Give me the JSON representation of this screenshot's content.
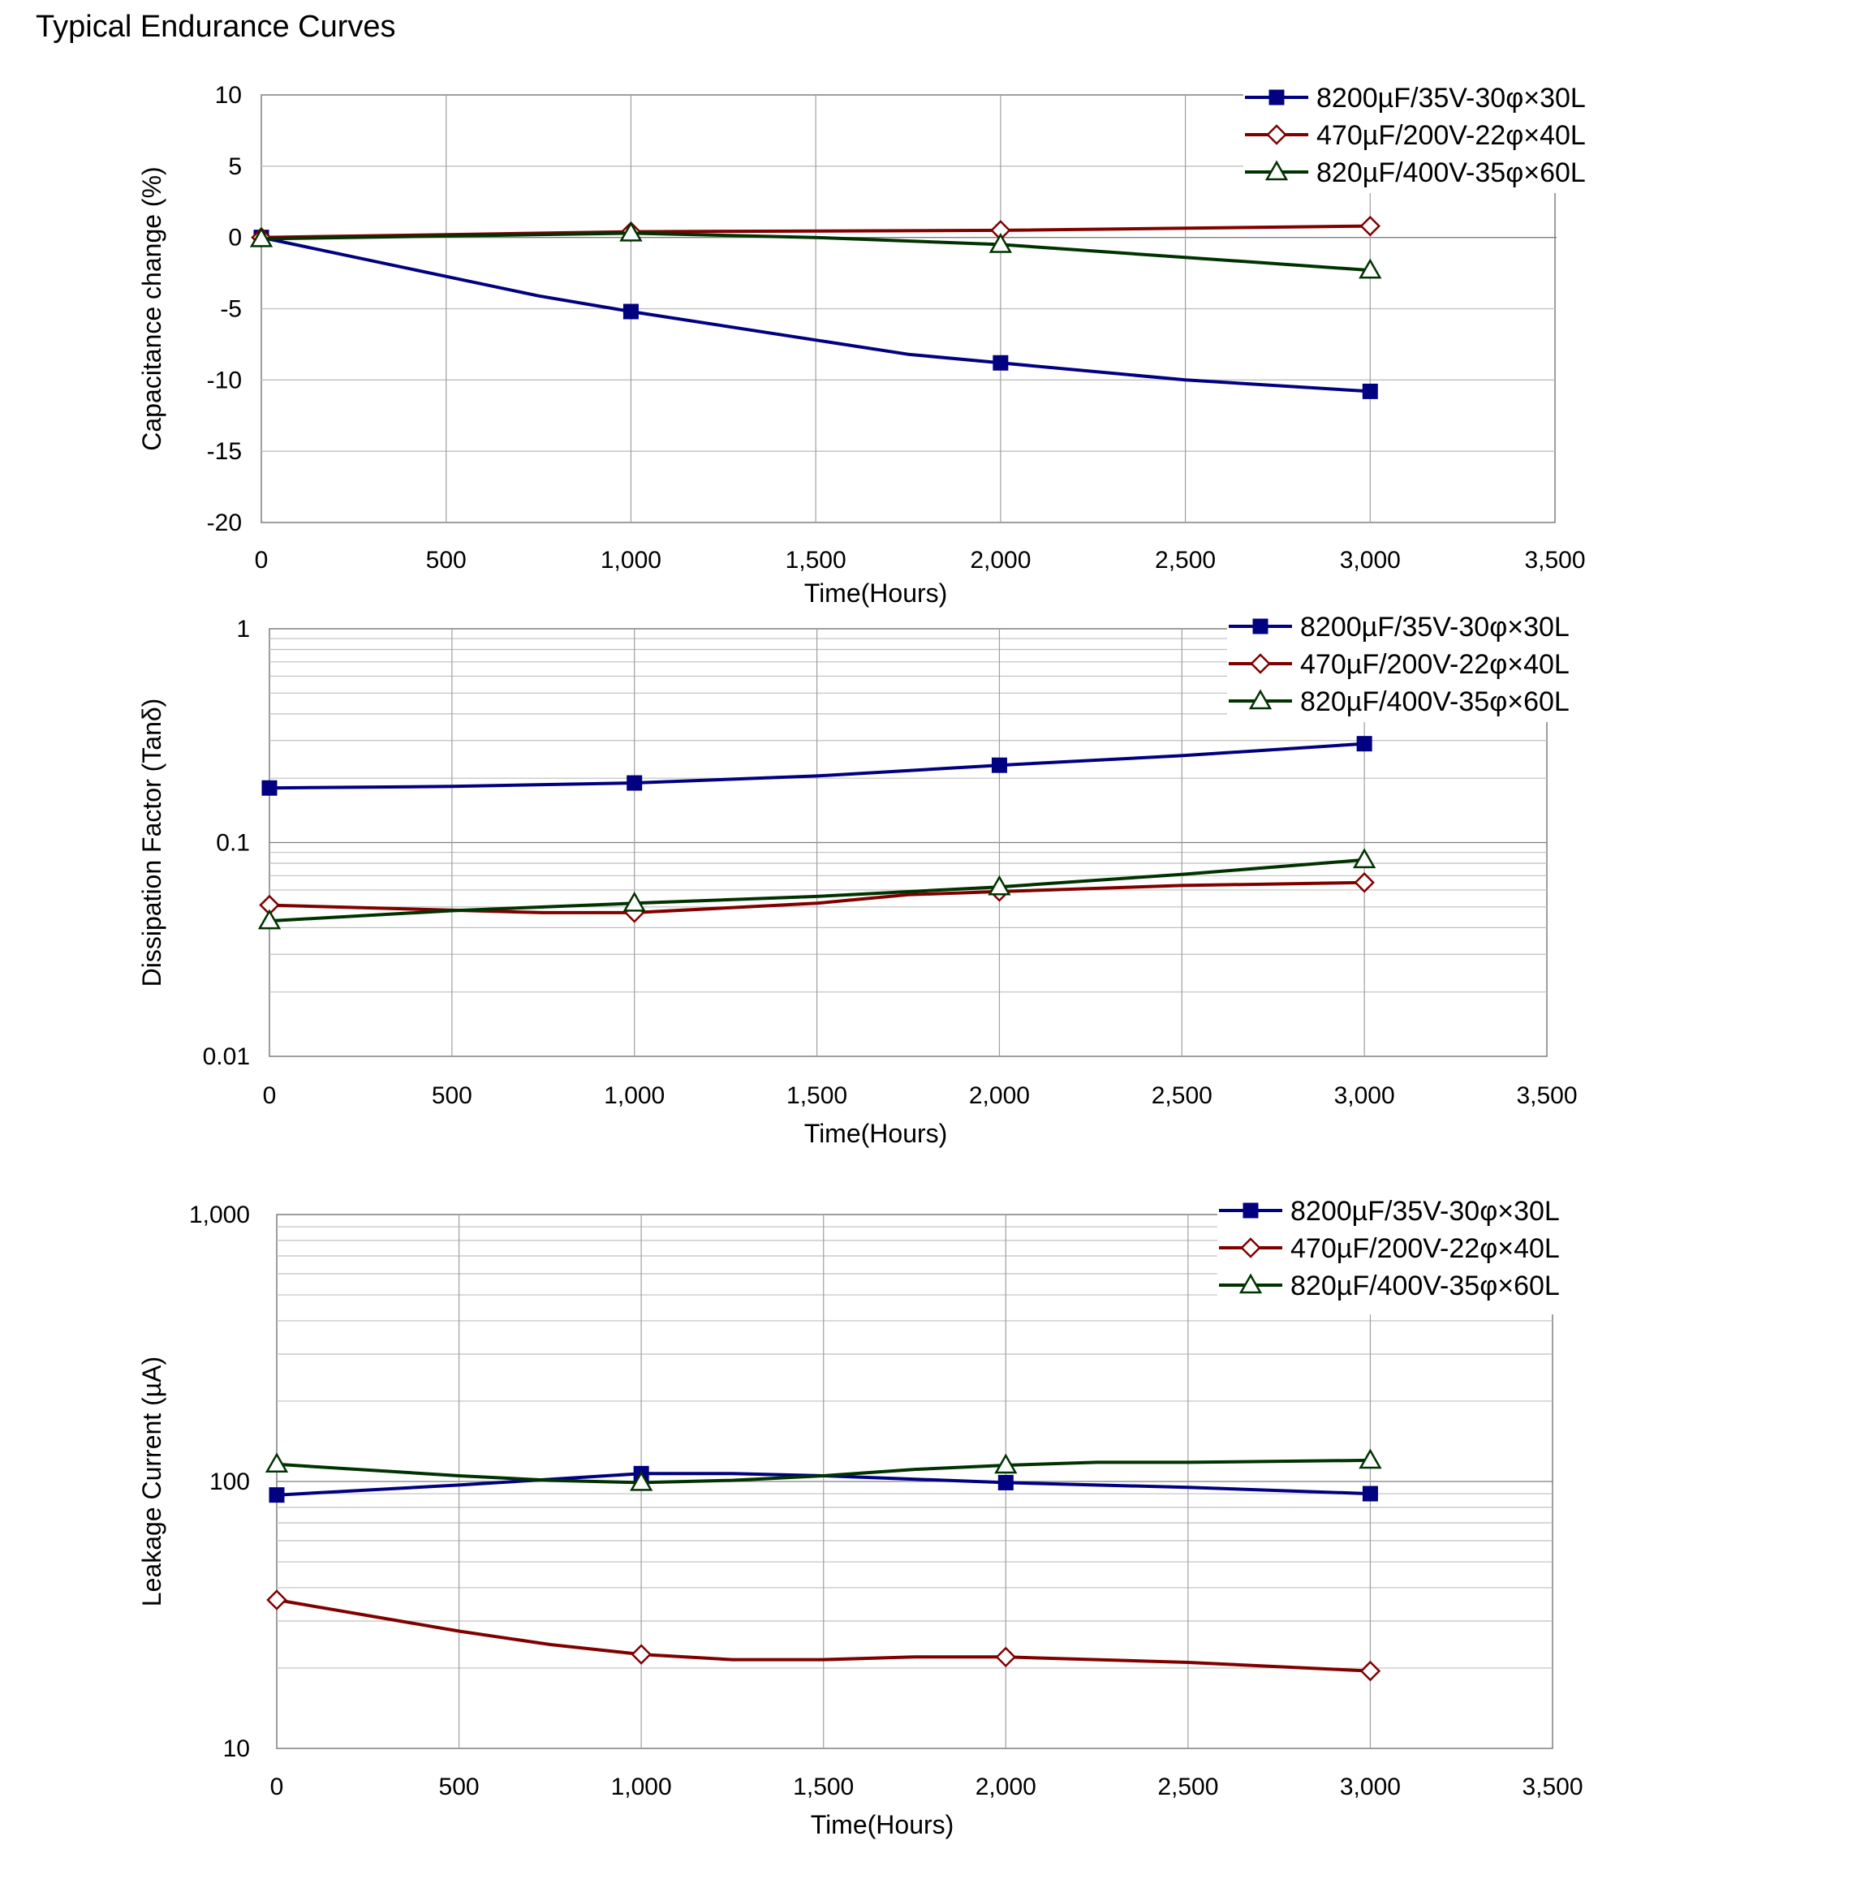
{
  "page": {
    "title": "Typical Endurance Curves"
  },
  "series_style": [
    {
      "name": "8200µF/35V-30φ×30L",
      "color": "#000080",
      "marker": "filled-square"
    },
    {
      "name": "470µF/200V-22φ×40L",
      "color": "#800000",
      "marker": "open-diamond"
    },
    {
      "name": "820µF/400V-35φ×60L",
      "color": "#003300",
      "marker": "open-triangle"
    }
  ],
  "chart_data": [
    {
      "type": "line",
      "xlabel": "Time(Hours)",
      "ylabel": "Capacitance change (%)",
      "xlim": [
        0,
        3500
      ],
      "ylim": [
        -20,
        10
      ],
      "yscale": "linear",
      "xticks": [
        0,
        500,
        1000,
        1500,
        2000,
        2500,
        3000,
        3500
      ],
      "xtick_labels": [
        "0",
        "500",
        "1,000",
        "1,500",
        "2,000",
        "2,500",
        "3,000",
        "3,500"
      ],
      "yticks": [
        10,
        5,
        0,
        -5,
        -10,
        -15,
        -20
      ],
      "ytick_labels": [
        "10",
        "5",
        "0",
        "-5",
        "-10",
        "-15",
        "-20"
      ],
      "grid": true,
      "legend": "top-right",
      "series": [
        {
          "name": "8200µF/35V-30φ×30L",
          "x": [
            0,
            750,
            1000,
            1750,
            2000,
            2500,
            3000
          ],
          "y": [
            0,
            -4.1,
            -5.2,
            -8.2,
            -8.8,
            -10.0,
            -10.8
          ],
          "marked": [
            true,
            false,
            true,
            false,
            true,
            false,
            true
          ]
        },
        {
          "name": "470µF/200V-22φ×40L",
          "x": [
            0,
            500,
            1000,
            2000,
            3000
          ],
          "y": [
            0,
            0.2,
            0.4,
            0.5,
            0.8
          ],
          "marked": [
            true,
            false,
            true,
            true,
            true
          ]
        },
        {
          "name": "820µF/400V-35φ×60L",
          "x": [
            0,
            1000,
            1500,
            2000,
            3000
          ],
          "y": [
            -0.1,
            0.3,
            0.0,
            -0.5,
            -2.3
          ],
          "marked": [
            true,
            true,
            false,
            true,
            true
          ]
        }
      ]
    },
    {
      "type": "line",
      "xlabel": "Time(Hours)",
      "ylabel": "Dissipation Factor (Tanδ)",
      "xlim": [
        0,
        3500
      ],
      "ylim": [
        0.01,
        1
      ],
      "yscale": "log",
      "xticks": [
        0,
        500,
        1000,
        1500,
        2000,
        2500,
        3000,
        3500
      ],
      "xtick_labels": [
        "0",
        "500",
        "1,000",
        "1,500",
        "2,000",
        "2,500",
        "3,000",
        "3,500"
      ],
      "yticks": [
        1,
        0.1,
        0.01
      ],
      "ytick_labels": [
        "1",
        "0.1",
        "0.01"
      ],
      "grid": true,
      "legend": "top-right",
      "series": [
        {
          "name": "8200µF/35V-30φ×30L",
          "x": [
            0,
            500,
            1000,
            1500,
            2000,
            2500,
            3000
          ],
          "y": [
            0.18,
            0.183,
            0.19,
            0.205,
            0.23,
            0.255,
            0.29
          ],
          "marked": [
            true,
            false,
            true,
            false,
            true,
            false,
            true
          ]
        },
        {
          "name": "470µF/200V-22φ×40L",
          "x": [
            0,
            750,
            1000,
            1500,
            1750,
            2000,
            2500,
            3000
          ],
          "y": [
            0.051,
            0.047,
            0.047,
            0.052,
            0.057,
            0.059,
            0.063,
            0.065
          ],
          "marked": [
            true,
            false,
            true,
            false,
            false,
            true,
            false,
            true
          ]
        },
        {
          "name": "820µF/400V-35φ×60L",
          "x": [
            0,
            500,
            1000,
            1500,
            2000,
            2500,
            3000
          ],
          "y": [
            0.043,
            0.048,
            0.052,
            0.056,
            0.062,
            0.071,
            0.083
          ],
          "marked": [
            true,
            false,
            true,
            false,
            true,
            false,
            true
          ]
        }
      ]
    },
    {
      "type": "line",
      "xlabel": "Time(Hours)",
      "ylabel": "Leakage Current (µA)",
      "xlim": [
        0,
        3500
      ],
      "ylim": [
        10,
        1000
      ],
      "yscale": "log",
      "xticks": [
        0,
        500,
        1000,
        1500,
        2000,
        2500,
        3000,
        3500
      ],
      "xtick_labels": [
        "0",
        "500",
        "1,000",
        "1,500",
        "2,000",
        "2,500",
        "3,000",
        "3,500"
      ],
      "yticks": [
        1000,
        100,
        10
      ],
      "ytick_labels": [
        "1,000",
        "100",
        "10"
      ],
      "grid": true,
      "legend": "top-right",
      "series": [
        {
          "name": "8200µF/35V-30φ×30L",
          "x": [
            0,
            500,
            1000,
            1250,
            1500,
            2000,
            2500,
            3000
          ],
          "y": [
            89,
            97,
            107,
            107,
            105,
            99,
            95,
            90
          ],
          "marked": [
            true,
            false,
            true,
            false,
            false,
            true,
            false,
            true
          ]
        },
        {
          "name": "470µF/200V-22φ×40L",
          "x": [
            0,
            500,
            750,
            1000,
            1250,
            1500,
            1750,
            2000,
            2500,
            3000
          ],
          "y": [
            36,
            27.5,
            24.5,
            22.5,
            21.5,
            21.5,
            22,
            22,
            21,
            19.5
          ],
          "marked": [
            true,
            false,
            false,
            true,
            false,
            false,
            false,
            true,
            false,
            true
          ]
        },
        {
          "name": "820µF/400V-35φ×60L",
          "x": [
            0,
            500,
            750,
            1000,
            1250,
            1500,
            1750,
            2000,
            2250,
            2500,
            3000
          ],
          "y": [
            116,
            105,
            101,
            99,
            101,
            105,
            111,
            115,
            118,
            118,
            120
          ],
          "marked": [
            true,
            false,
            false,
            true,
            false,
            false,
            false,
            true,
            false,
            false,
            true
          ]
        }
      ]
    }
  ]
}
